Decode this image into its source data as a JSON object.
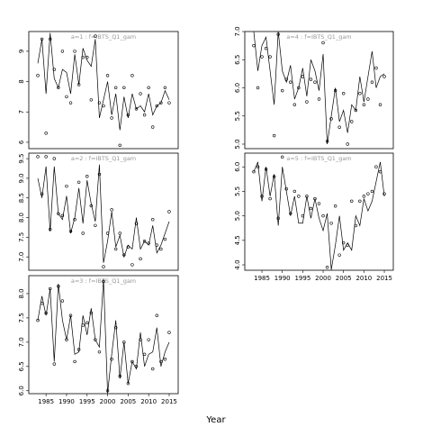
{
  "x_label": "Year",
  "chart_data": [
    {
      "type": "line",
      "title": "a=1  :  f=IBTS_Q1_gam",
      "x": [
        1983,
        1984,
        1985,
        1986,
        1987,
        1988,
        1989,
        1990,
        1991,
        1992,
        1993,
        1994,
        1995,
        1996,
        1997,
        1998,
        1999,
        2000,
        2001,
        2002,
        2003,
        2004,
        2005,
        2006,
        2007,
        2008,
        2009,
        2010,
        2011,
        2012,
        2013,
        2014,
        2015
      ],
      "series": [
        {
          "style": "points",
          "color": "#000000",
          "values": [
            8.2,
            9.4,
            6.3,
            9.4,
            8.4,
            7.8,
            9.0,
            7.5,
            7.3,
            9.0,
            7.9,
            8.8,
            8.8,
            7.4,
            9.5,
            7.3,
            7.2,
            8.2,
            6.8,
            7.8,
            5.9,
            7.8,
            6.9,
            8.2,
            7.1,
            7.6,
            6.9,
            7.8,
            6.5,
            7.2,
            7.3,
            7.8,
            7.3
          ]
        },
        {
          "style": "line",
          "color": "#000000",
          "values": [
            8.6,
            9.4,
            7.6,
            9.6,
            8.1,
            7.8,
            8.4,
            8.3,
            7.6,
            8.9,
            7.9,
            9.1,
            8.7,
            8.5,
            9.4,
            6.8,
            7.4,
            8.0,
            6.9,
            7.6,
            6.4,
            7.5,
            6.8,
            7.6,
            7.1,
            7.2,
            7.0,
            7.6,
            6.9,
            7.2,
            7.3,
            7.7,
            7.4
          ]
        }
      ],
      "xlim": [
        1980.8,
        2017.2
      ],
      "ylim": [
        5.79,
        9.65
      ],
      "yticks": [
        6,
        7,
        8,
        9
      ]
    },
    {
      "type": "line",
      "title": "a=2  :  f=IBTS_Q1_gam",
      "x": [
        1983,
        1984,
        1985,
        1986,
        1987,
        1988,
        1989,
        1990,
        1991,
        1992,
        1993,
        1994,
        1995,
        1996,
        1997,
        1998,
        1999,
        2000,
        2001,
        2002,
        2003,
        2004,
        2005,
        2006,
        2007,
        2008,
        2009,
        2010,
        2011,
        2012,
        2013,
        2014,
        2015
      ],
      "series": [
        {
          "style": "points",
          "color": "#000000",
          "values": [
            9.55,
            8.6,
            9.55,
            7.7,
            9.5,
            8.1,
            8.05,
            8.8,
            7.65,
            7.95,
            8.9,
            7.6,
            9.05,
            8.3,
            7.8,
            9.1,
            6.75,
            7.6,
            8.2,
            7.2,
            7.6,
            7.05,
            7.25,
            6.8,
            7.85,
            6.95,
            7.4,
            7.35,
            7.95,
            7.3,
            7.2,
            7.45,
            8.15
          ]
        },
        {
          "style": "line",
          "color": "#000000",
          "values": [
            9.0,
            8.5,
            9.3,
            7.65,
            9.3,
            8.1,
            7.95,
            8.55,
            7.6,
            8.0,
            8.75,
            7.85,
            8.95,
            8.35,
            7.9,
            9.35,
            6.85,
            7.4,
            8.15,
            7.25,
            7.55,
            7.0,
            7.3,
            7.2,
            8.0,
            7.2,
            7.4,
            7.3,
            7.8,
            7.1,
            7.3,
            7.6,
            7.9
          ]
        }
      ],
      "xlim": [
        1980.8,
        2017.2
      ],
      "ylim": [
        6.66,
        9.64
      ],
      "yticks": [
        {
          "value": 7,
          "label": "7.0"
        },
        7.5,
        {
          "value": 8,
          "label": "8.0"
        },
        8.5,
        {
          "value": 9,
          "label": "9.0"
        },
        9.5
      ]
    },
    {
      "type": "line",
      "title": "a=3  :  f=IBTS_Q1_gam",
      "x": [
        1983,
        1984,
        1985,
        1986,
        1987,
        1988,
        1989,
        1990,
        1991,
        1992,
        1993,
        1994,
        1995,
        1996,
        1997,
        1998,
        1999,
        2000,
        2001,
        2002,
        2003,
        2004,
        2005,
        2006,
        2007,
        2008,
        2009,
        2010,
        2011,
        2012,
        2013,
        2014,
        2015
      ],
      "series": [
        {
          "style": "points",
          "color": "#000000",
          "values": [
            7.45,
            7.8,
            7.6,
            8.1,
            6.55,
            8.15,
            7.85,
            7.05,
            7.55,
            6.6,
            6.85,
            7.35,
            7.4,
            7.6,
            7.05,
            6.8,
            8.25,
            6.0,
            6.65,
            7.3,
            6.3,
            7.0,
            6.15,
            6.6,
            6.5,
            7.05,
            6.75,
            7.05,
            6.45,
            7.55,
            6.6,
            6.65,
            7.2
          ]
        },
        {
          "style": "line",
          "color": "#000000",
          "values": [
            7.45,
            7.95,
            7.55,
            8.1,
            6.6,
            8.2,
            7.45,
            7.05,
            7.55,
            6.75,
            6.8,
            7.55,
            7.15,
            7.7,
            7.05,
            6.9,
            8.3,
            5.95,
            6.75,
            7.45,
            6.25,
            7.0,
            6.15,
            6.6,
            6.45,
            7.2,
            6.5,
            6.75,
            6.8,
            7.3,
            6.5,
            6.8,
            7.0
          ]
        }
      ],
      "xlim": [
        1980.8,
        2017.2
      ],
      "ylim": [
        5.94,
        8.37
      ],
      "yticks": [
        {
          "value": 6,
          "label": "6.0"
        },
        6.5,
        {
          "value": 7,
          "label": "7.0"
        },
        7.5,
        {
          "value": 8,
          "label": "8.0"
        }
      ],
      "xticks": [
        1985,
        1990,
        1995,
        2000,
        2005,
        2010,
        2015
      ]
    },
    {
      "type": "line",
      "title": "a=4  :  f=IBTS_Q1_gam",
      "x": [
        1983,
        1984,
        1985,
        1986,
        1987,
        1988,
        1989,
        1990,
        1991,
        1992,
        1993,
        1994,
        1995,
        1996,
        1997,
        1998,
        1999,
        2000,
        2001,
        2002,
        2003,
        2004,
        2005,
        2006,
        2007,
        2008,
        2009,
        2010,
        2011,
        2012,
        2013,
        2014,
        2015
      ],
      "series": [
        {
          "style": "points",
          "color": "#000000",
          "values": [
            6.75,
            6.0,
            6.55,
            6.7,
            6.55,
            5.15,
            6.95,
            5.95,
            6.15,
            6.1,
            5.7,
            6.0,
            6.2,
            5.75,
            6.15,
            6.1,
            5.8,
            6.8,
            5.05,
            5.45,
            5.95,
            5.3,
            5.9,
            5.0,
            5.4,
            5.6,
            5.9,
            5.7,
            5.8,
            6.1,
            6.35,
            5.7,
            6.2
          ]
        },
        {
          "style": "line",
          "color": "#000000",
          "values": [
            7.0,
            6.3,
            6.75,
            6.9,
            6.3,
            5.7,
            7.0,
            6.3,
            6.1,
            6.4,
            5.8,
            6.0,
            6.35,
            5.85,
            6.5,
            6.3,
            5.95,
            6.6,
            5.0,
            5.5,
            6.0,
            5.4,
            5.6,
            5.2,
            5.7,
            5.6,
            6.2,
            5.75,
            6.2,
            6.65,
            6.0,
            6.2,
            6.25
          ]
        }
      ],
      "xlim": [
        1980.8,
        2017.2
      ],
      "ylim": [
        4.92,
        7.0
      ],
      "yticks": [
        {
          "value": 5,
          "label": "5.0"
        },
        5.5,
        {
          "value": 6,
          "label": "6.0"
        },
        6.5,
        {
          "value": 7,
          "label": "7.0"
        }
      ]
    },
    {
      "type": "line",
      "title": "a=5  :  f=IBTS_Q1_gam",
      "x": [
        1983,
        1984,
        1985,
        1986,
        1987,
        1988,
        1989,
        1990,
        1991,
        1992,
        1993,
        1994,
        1995,
        1996,
        1997,
        1998,
        1999,
        2000,
        2001,
        2002,
        2003,
        2004,
        2005,
        2006,
        2007,
        2008,
        2009,
        2010,
        2011,
        2012,
        2013,
        2014,
        2015
      ],
      "series": [
        {
          "style": "points",
          "color": "#000000",
          "values": [
            5.9,
            6.0,
            5.4,
            5.95,
            5.35,
            5.8,
            4.95,
            6.2,
            5.55,
            5.05,
            5.5,
            5.4,
            5.0,
            5.4,
            5.15,
            5.35,
            5.25,
            5.0,
            3.95,
            4.85,
            5.2,
            4.2,
            4.45,
            4.4,
            5.3,
            4.8,
            5.3,
            5.4,
            5.45,
            5.5,
            6.0,
            5.9,
            5.45
          ]
        },
        {
          "style": "line",
          "color": "#000000",
          "values": [
            5.9,
            6.1,
            5.3,
            6.0,
            5.4,
            5.85,
            4.8,
            6.0,
            5.5,
            5.0,
            5.4,
            4.85,
            4.85,
            5.4,
            4.95,
            5.35,
            4.95,
            4.7,
            5.05,
            3.9,
            4.4,
            5.0,
            4.3,
            4.45,
            4.3,
            5.0,
            4.8,
            5.35,
            5.1,
            5.3,
            5.7,
            6.1,
            5.4
          ]
        }
      ],
      "xlim": [
        1980.8,
        2017.2
      ],
      "ylim": [
        3.89,
        6.28
      ],
      "yticks": [
        {
          "value": 4,
          "label": "4.0"
        },
        4.5,
        {
          "value": 5,
          "label": "5.0"
        },
        5.5,
        {
          "value": 6,
          "label": "6.0"
        }
      ],
      "xticks": [
        1985,
        1990,
        1995,
        2000,
        2005,
        2010,
        2015
      ]
    }
  ]
}
